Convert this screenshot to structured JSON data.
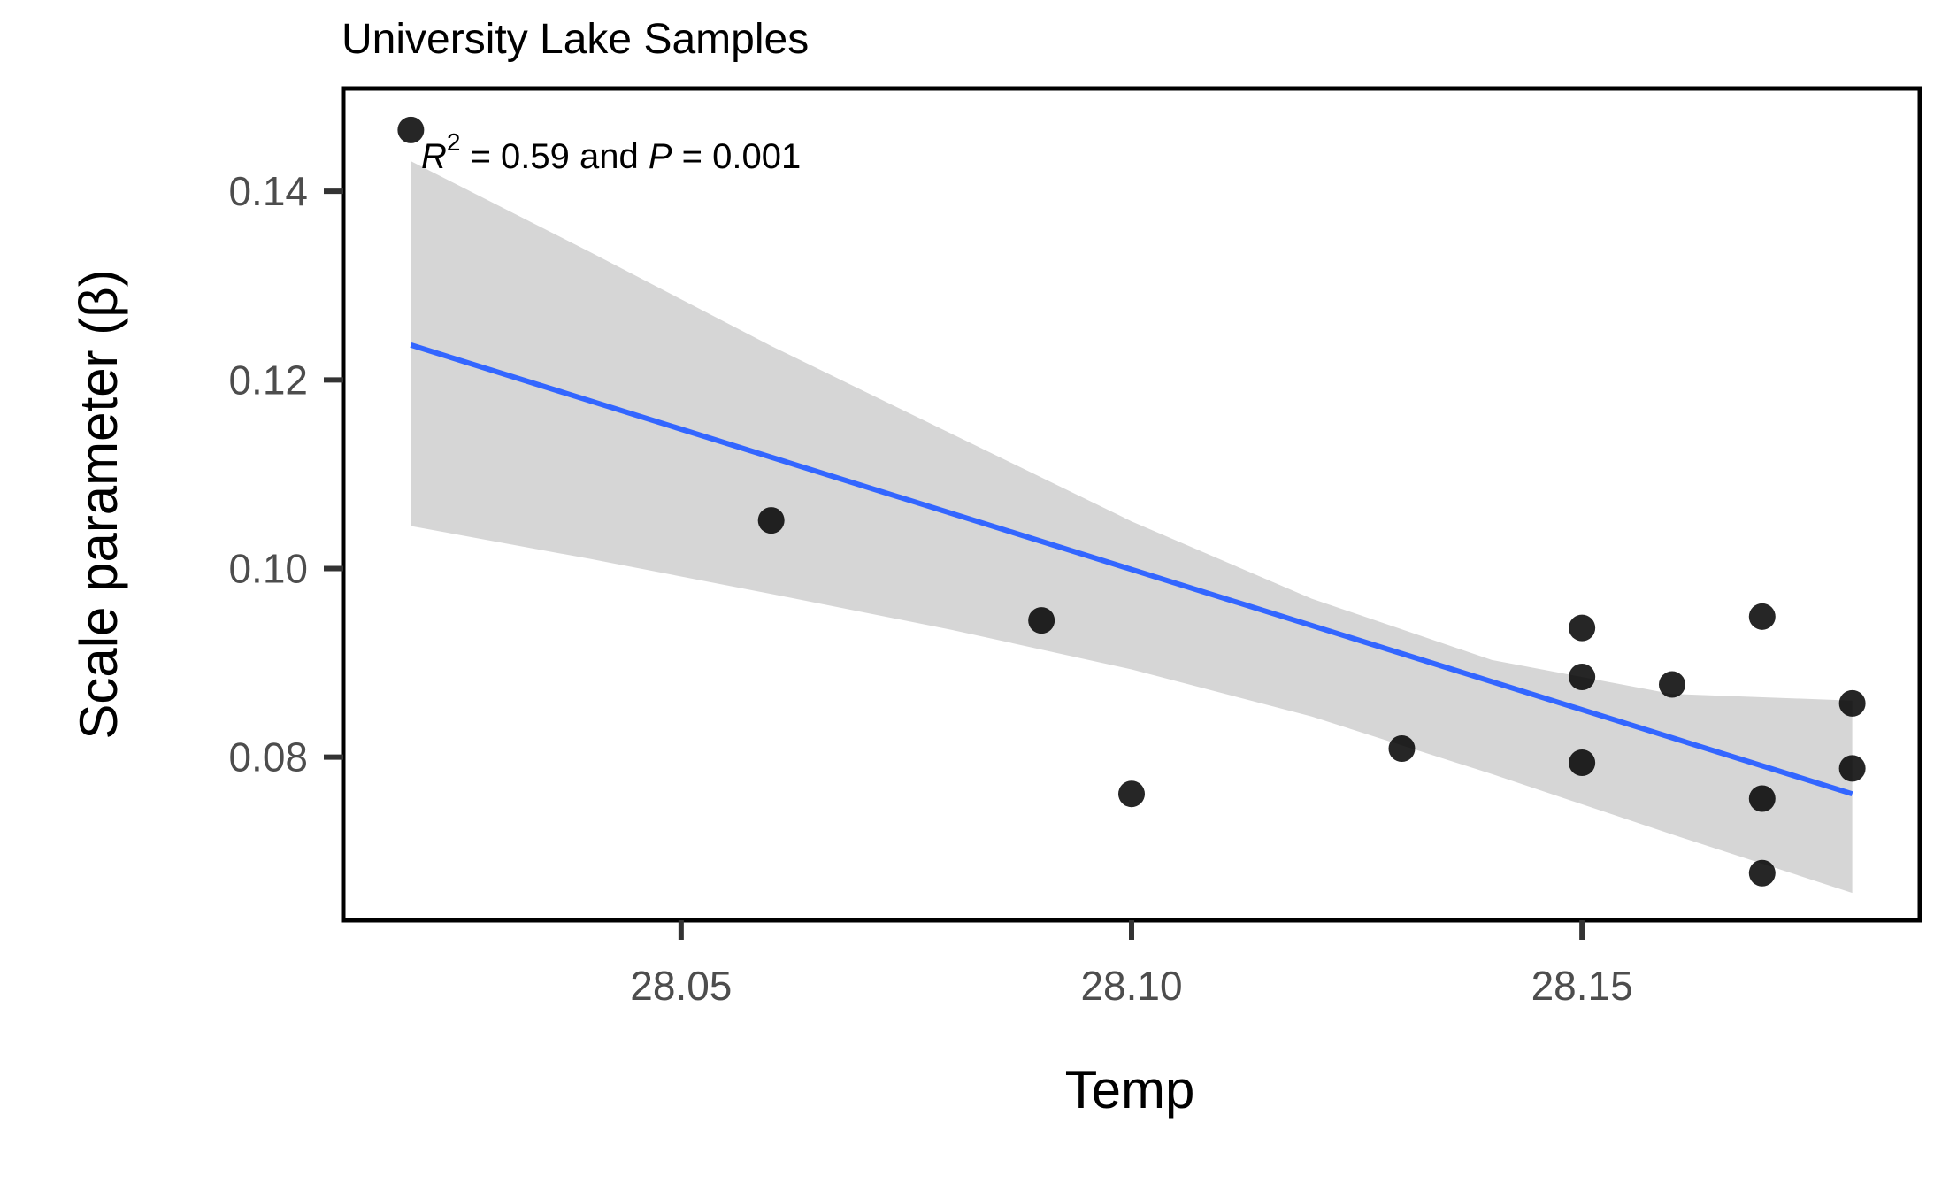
{
  "chart_data": {
    "type": "scatter",
    "title": "University Lake Samples",
    "xlabel": "Temp",
    "ylabel": "Scale parameter (β)",
    "annotation": {
      "r_symbol": "R",
      "r_sup": "2",
      "r_text": " = 0.59 and ",
      "p_symbol": "P",
      "p_text": " = 0.001"
    },
    "xlim": [
      28.0125,
      28.1875
    ],
    "ylim": [
      0.0627,
      0.1509
    ],
    "x_ticks": [
      28.05,
      28.1,
      28.15
    ],
    "x_tick_labels": [
      "28.05",
      "28.10",
      "28.15"
    ],
    "y_ticks": [
      0.08,
      0.1,
      0.12,
      0.14
    ],
    "y_tick_labels": [
      "0.08",
      "0.10",
      "0.12",
      "0.14"
    ],
    "grid": false,
    "points": [
      {
        "x": 28.02,
        "y": 0.1465
      },
      {
        "x": 28.06,
        "y": 0.1051
      },
      {
        "x": 28.09,
        "y": 0.0945
      },
      {
        "x": 28.1,
        "y": 0.0761
      },
      {
        "x": 28.13,
        "y": 0.0809
      },
      {
        "x": 28.15,
        "y": 0.0937
      },
      {
        "x": 28.15,
        "y": 0.0885
      },
      {
        "x": 28.15,
        "y": 0.0794
      },
      {
        "x": 28.16,
        "y": 0.0877
      },
      {
        "x": 28.17,
        "y": 0.0949
      },
      {
        "x": 28.17,
        "y": 0.0756
      },
      {
        "x": 28.17,
        "y": 0.0677
      },
      {
        "x": 28.18,
        "y": 0.0857
      },
      {
        "x": 28.18,
        "y": 0.0788
      }
    ],
    "fit_line": {
      "x": [
        28.02,
        28.18
      ],
      "y": [
        0.1237,
        0.0761
      ]
    },
    "confidence_band": {
      "x": [
        28.02,
        28.04,
        28.06,
        28.08,
        28.1,
        28.12,
        28.14,
        28.16,
        28.18
      ],
      "upper": [
        0.1432,
        0.1335,
        0.1236,
        0.1143,
        0.105,
        0.0968,
        0.0903,
        0.0867,
        0.086
      ],
      "lower": [
        0.1045,
        0.101,
        0.0973,
        0.0935,
        0.0893,
        0.0843,
        0.0782,
        0.0718,
        0.0656
      ]
    },
    "colors": {
      "point": "#000000",
      "line": "#3366ff",
      "band": "#d6d6d6",
      "frame": "#000000",
      "tick": "#333333"
    }
  }
}
